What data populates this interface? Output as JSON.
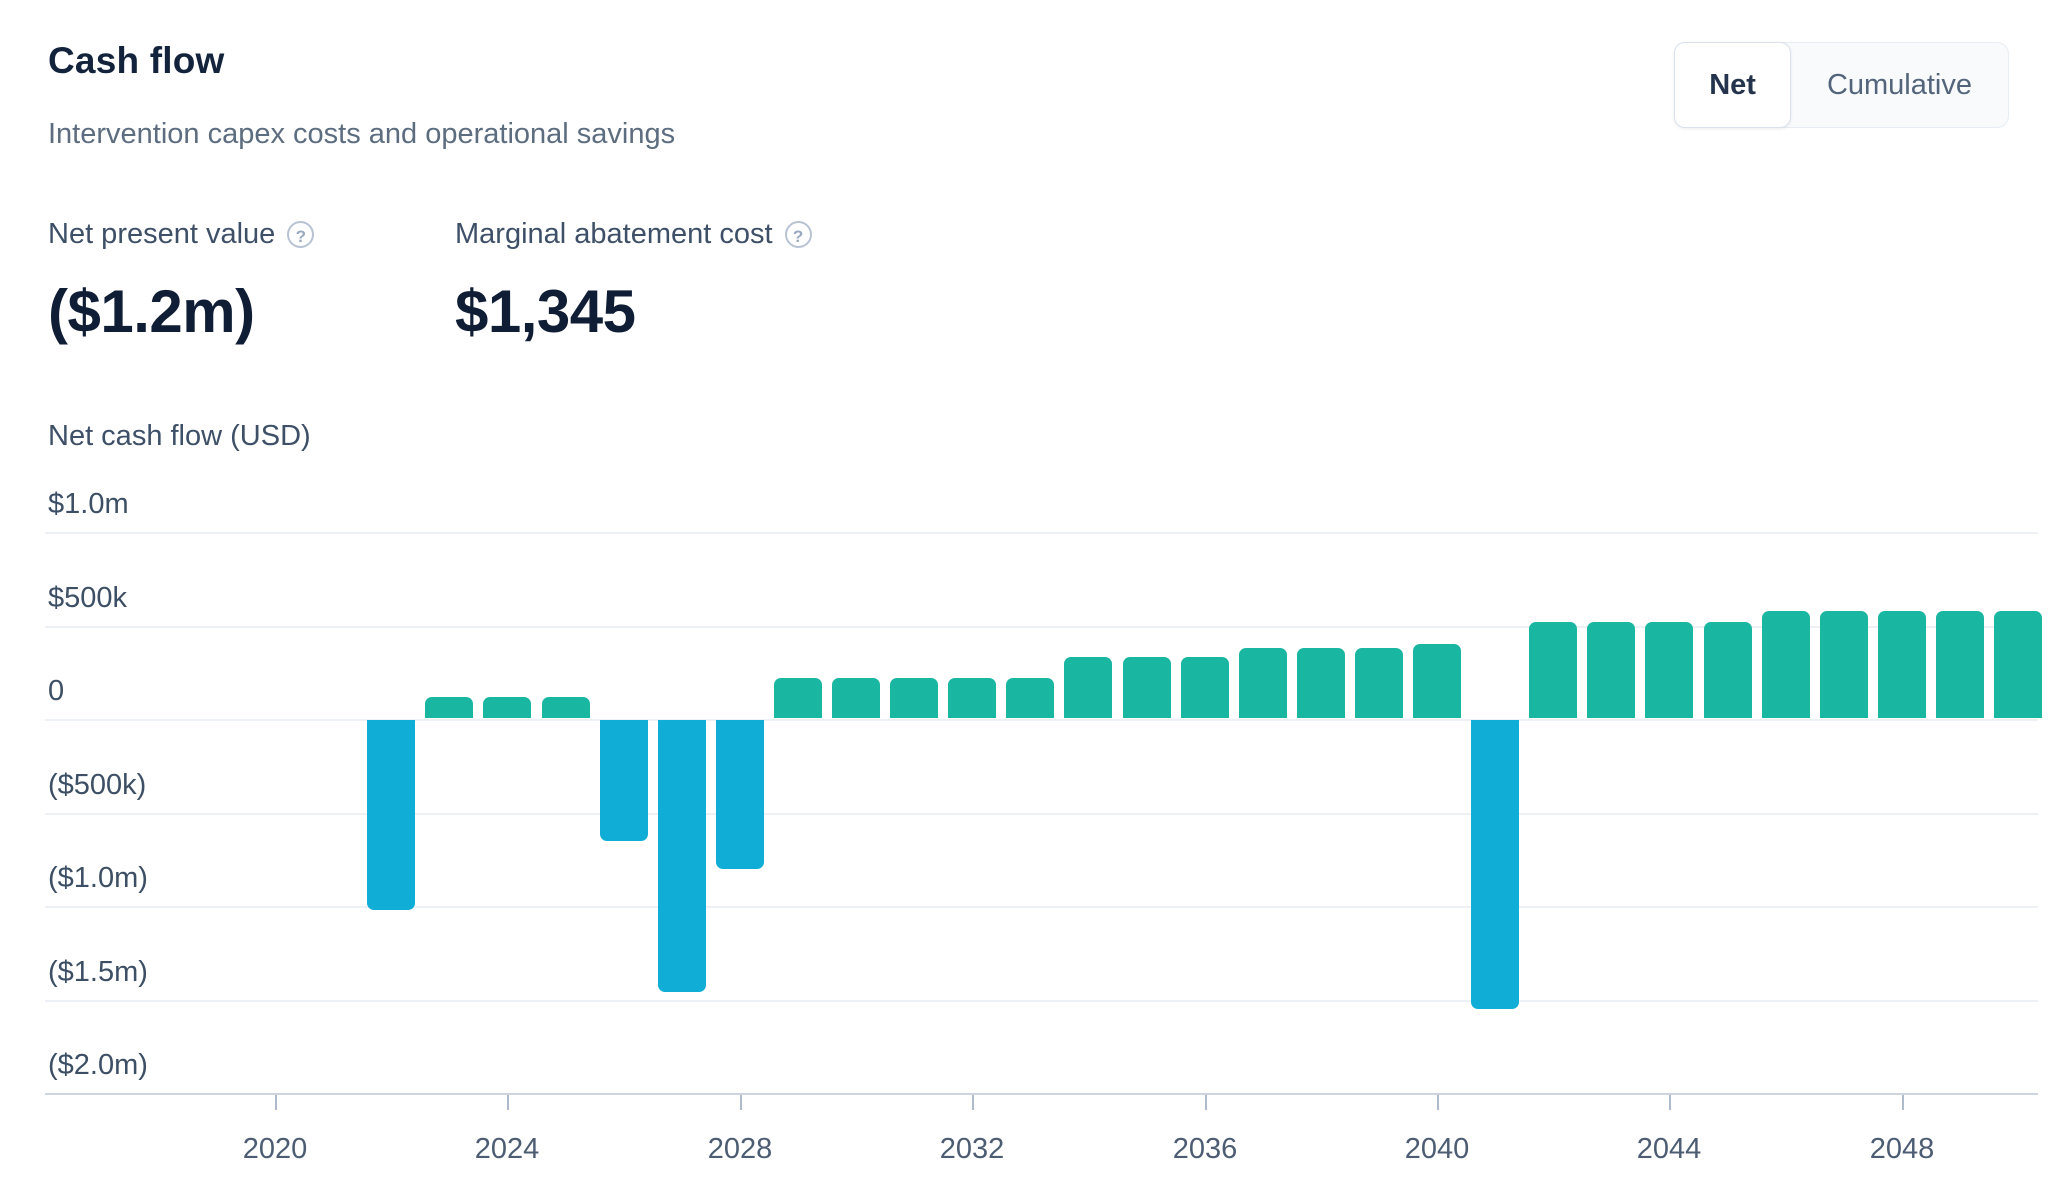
{
  "header": {
    "title": "Cash flow",
    "subtitle": "Intervention capex costs and operational savings"
  },
  "toggle": {
    "options": [
      {
        "label": "Net",
        "selected": true
      },
      {
        "label": "Cumulative",
        "selected": false
      }
    ]
  },
  "kpis": [
    {
      "label": "Net present value",
      "value": "($1.2m)",
      "help_icon": "?"
    },
    {
      "label": "Marginal abatement cost",
      "value": "$1,345",
      "help_icon": "?"
    }
  ],
  "chart_data": {
    "type": "bar",
    "title": "Net cash flow (USD)",
    "unit": "USD millions",
    "x": [
      2022,
      2023,
      2024,
      2025,
      2026,
      2027,
      2028,
      2029,
      2030,
      2031,
      2032,
      2033,
      2034,
      2035,
      2036,
      2037,
      2038,
      2039,
      2040,
      2041,
      2042,
      2043,
      2044,
      2045,
      2046,
      2047,
      2048,
      2049,
      2050
    ],
    "values": [
      -1.02,
      0.12,
      0.12,
      0.12,
      -0.65,
      -1.46,
      -0.8,
      0.22,
      0.22,
      0.22,
      0.22,
      0.22,
      0.33,
      0.33,
      0.33,
      0.38,
      0.38,
      0.38,
      0.4,
      -1.55,
      0.52,
      0.52,
      0.52,
      0.52,
      0.58,
      0.58,
      0.58,
      0.58,
      0.58
    ],
    "y_ticks": [
      {
        "label": "$1.0m",
        "value": 1.0
      },
      {
        "label": "$500k",
        "value": 0.5
      },
      {
        "label": "0",
        "value": 0.0
      },
      {
        "label": "($500k)",
        "value": -0.5
      },
      {
        "label": "($1.0m)",
        "value": -1.0
      },
      {
        "label": "($1.5m)",
        "value": -1.5
      },
      {
        "label": "($2.0m)",
        "value": -2.0
      }
    ],
    "x_ticks": [
      2020,
      2024,
      2028,
      2032,
      2036,
      2040,
      2044,
      2048
    ],
    "ylim": [
      -2.0,
      1.0
    ],
    "grid": "horizontal",
    "legend": "none",
    "positive_color": "#19b6a2",
    "negative_color": "#10aed6"
  },
  "colors": {
    "accent_positive": "#19b6a2",
    "accent_negative": "#10aed6",
    "gridline": "#edf1f6",
    "axis_line": "#ccd5e0",
    "title_text": "#13233c",
    "muted_text": "#5d6d80"
  }
}
